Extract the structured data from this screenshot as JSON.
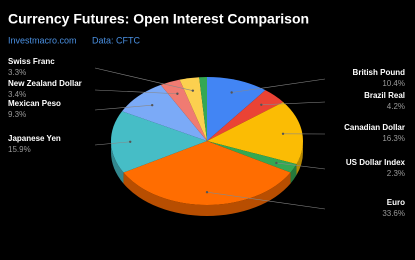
{
  "chart_data": {
    "type": "pie3d",
    "title": "Currency Futures: Open Interest Comparison",
    "subtitle": [
      "Investmacro.com",
      "Data: CFTC"
    ],
    "categories": [
      "British Pound",
      "Brazil Real",
      "Canadian Dollar",
      "US Dollar Index",
      "Euro",
      "Japanese Yen",
      "Mexican Peso",
      "New Zealand Dollar",
      "Swiss Franc",
      null
    ],
    "values": [
      10.4,
      4.2,
      16.3,
      2.3,
      33.6,
      15.9,
      9.3,
      3.4,
      3.3,
      1.3
    ],
    "value_labels": [
      "10.4%",
      "4.2%",
      "16.3%",
      "2.3%",
      "33.6%",
      "15.9%",
      "9.3%",
      "3.4%",
      "3.3%",
      null
    ],
    "colors": [
      "#4285f4",
      "#ea4335",
      "#fbbc04",
      "#34a853",
      "#ff6d01",
      "#46bdc6",
      "#7baaf7",
      "#f07b72",
      "#fcd04f",
      "#34a853"
    ]
  }
}
